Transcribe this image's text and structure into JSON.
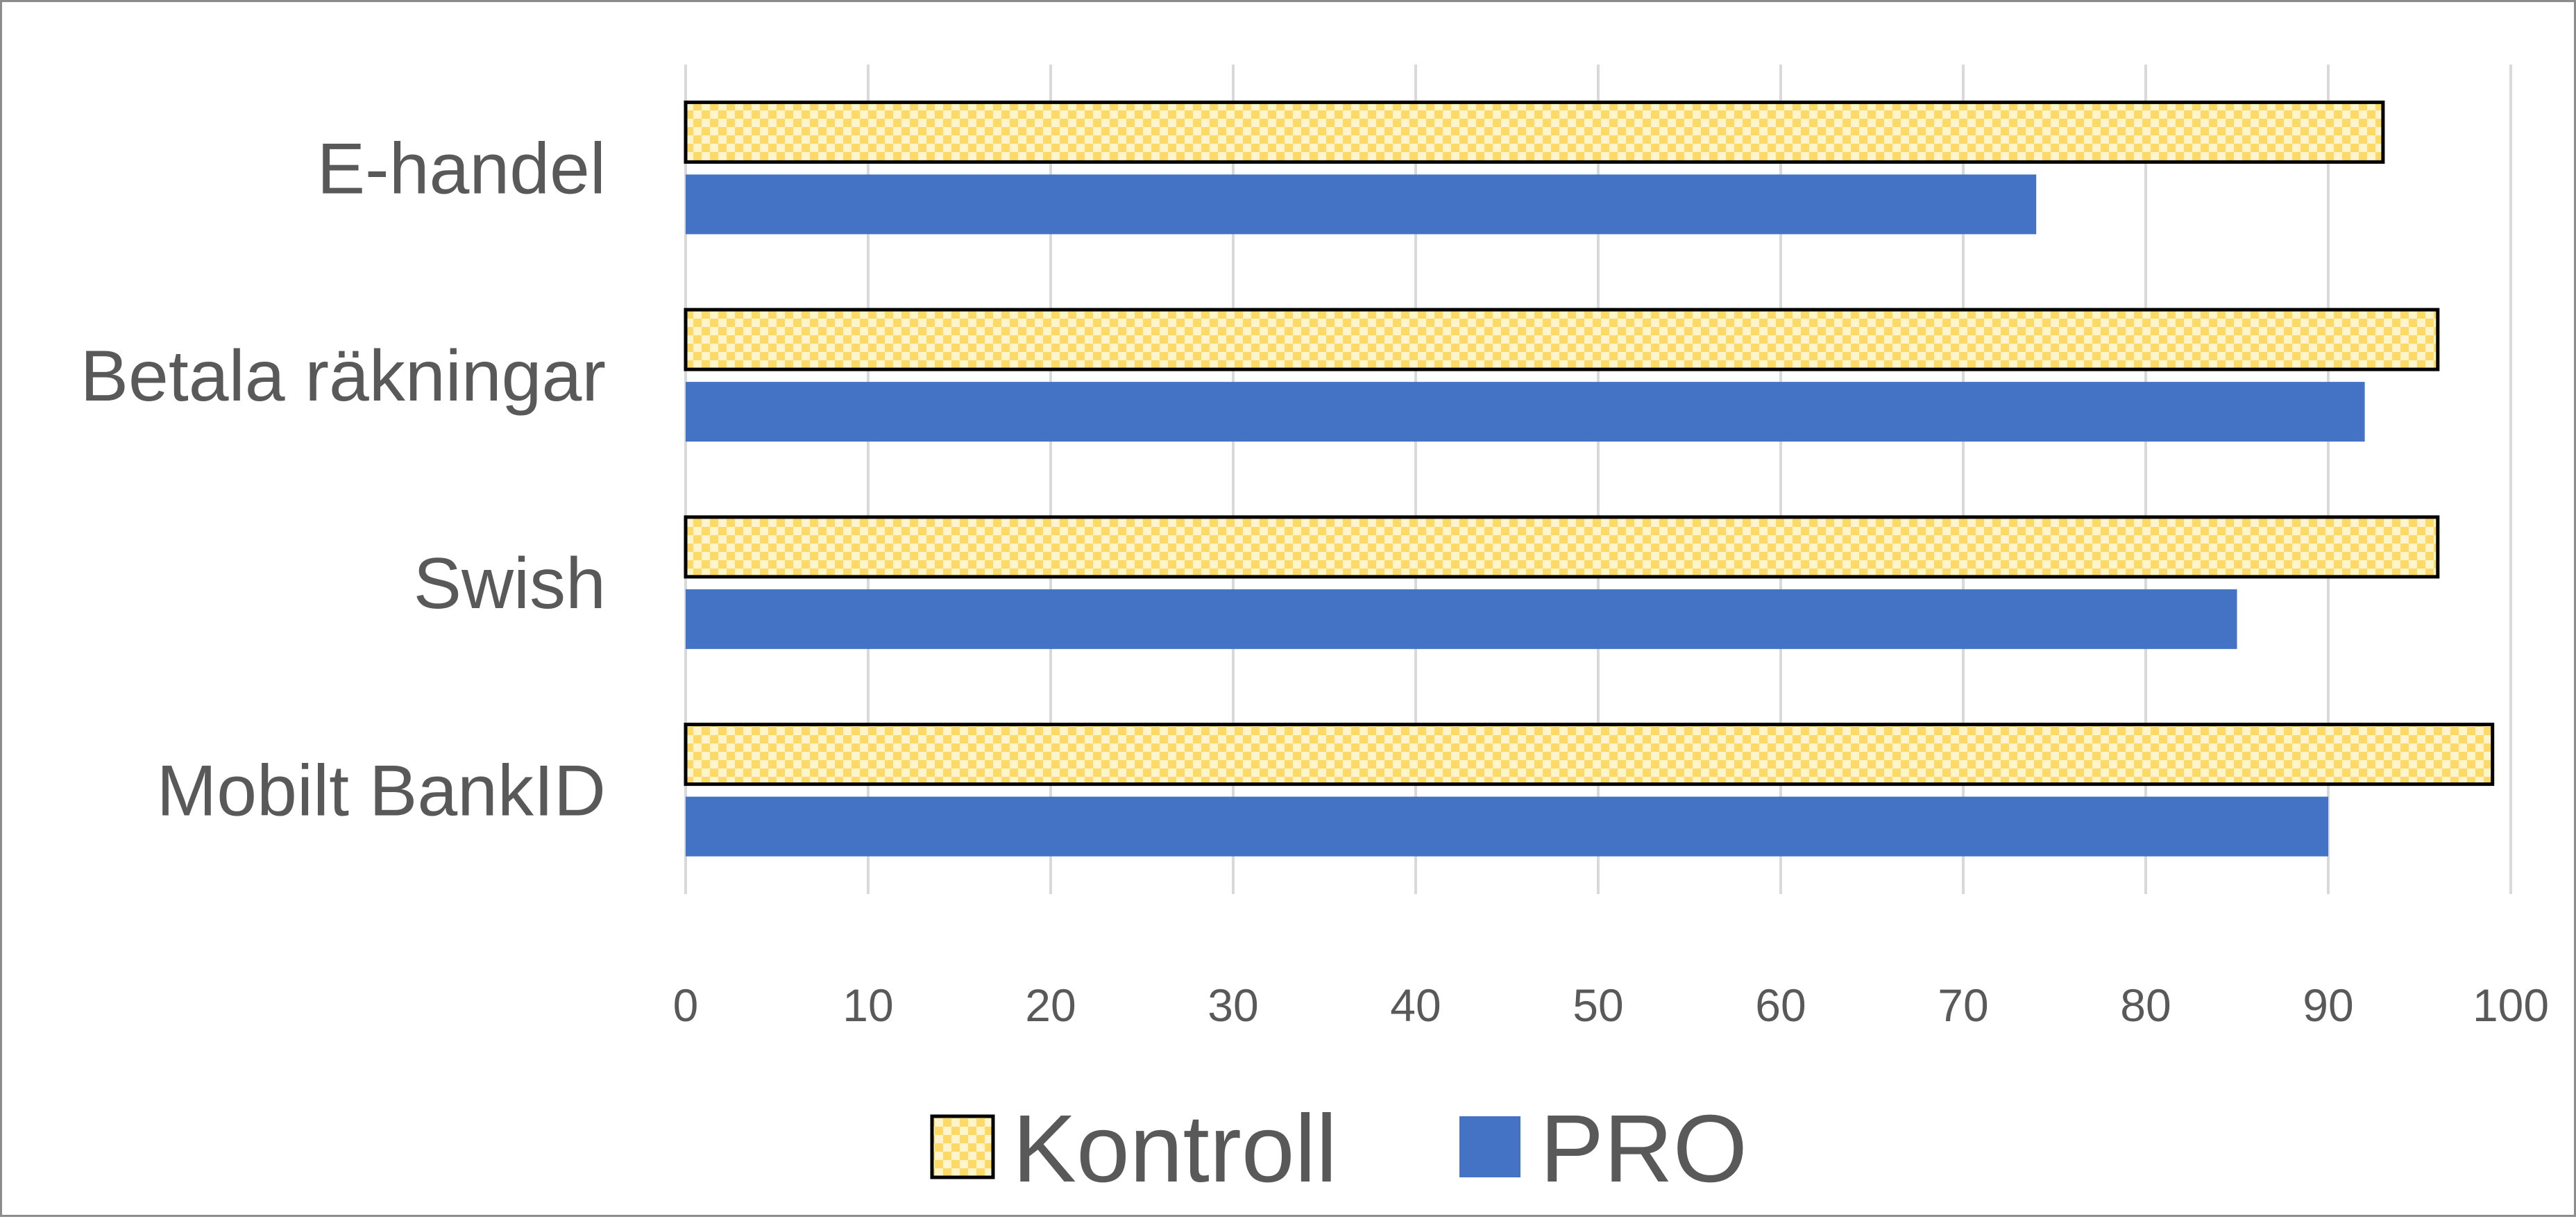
{
  "chart_data": {
    "type": "bar",
    "orientation": "horizontal",
    "categories": [
      "E-handel",
      "Betala räkningar",
      "Swish",
      "Mobilt BankID"
    ],
    "series": [
      {
        "name": "Kontroll",
        "values": [
          93,
          96,
          96,
          99
        ],
        "color": "#FFD966",
        "pattern": "checkered"
      },
      {
        "name": "PRO",
        "values": [
          74,
          92,
          85,
          90
        ],
        "color": "#4472C4"
      }
    ],
    "xlim": [
      0,
      100
    ],
    "xticks": [
      0,
      10,
      20,
      30,
      40,
      50,
      60,
      70,
      80,
      90,
      100
    ],
    "grid": "vertical",
    "legend": "bottom"
  }
}
